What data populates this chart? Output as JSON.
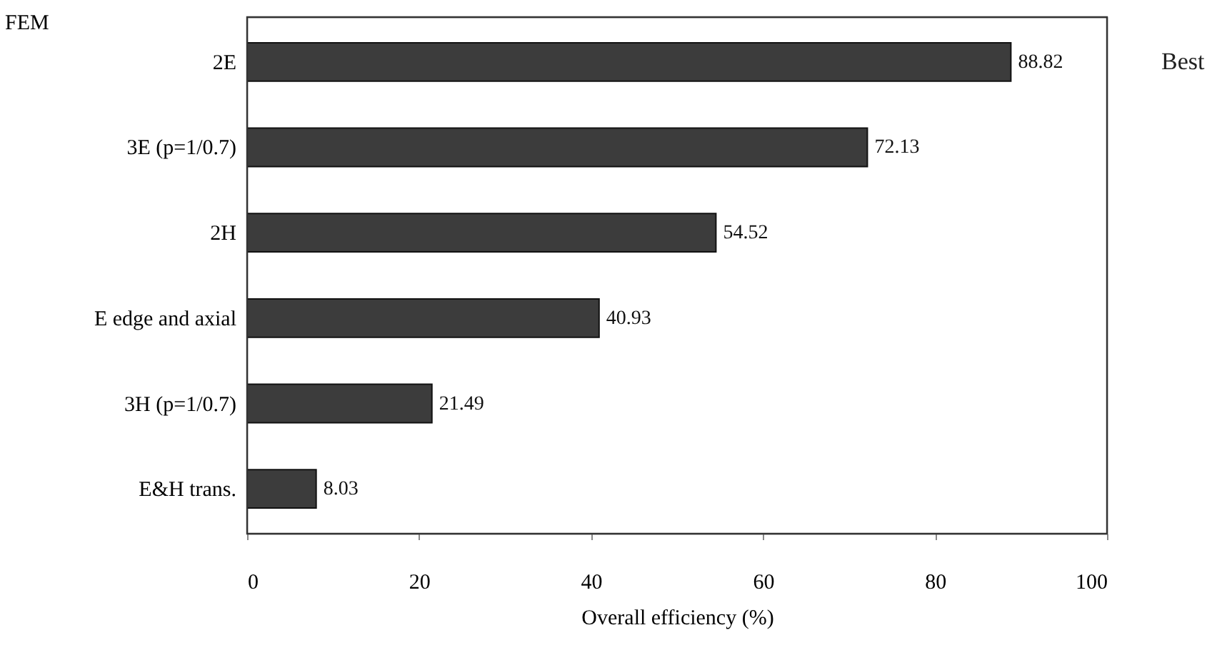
{
  "chart_data": {
    "type": "bar",
    "orientation": "horizontal",
    "ylabel": "FEM",
    "xlabel": "Overall efficiency (%)",
    "categories": [
      "2E",
      "3E (p=1/0.7)",
      "2H",
      "E edge and axial",
      "3H (p=1/0.7)",
      "E&H trans."
    ],
    "values": [
      88.82,
      72.13,
      54.52,
      40.93,
      21.49,
      8.03
    ],
    "color": "#3c3c3c",
    "xlim": [
      0,
      100
    ],
    "xticks": [
      0,
      20,
      40,
      60,
      80,
      100
    ],
    "data_labels": true,
    "annotations": [
      "Best"
    ]
  }
}
